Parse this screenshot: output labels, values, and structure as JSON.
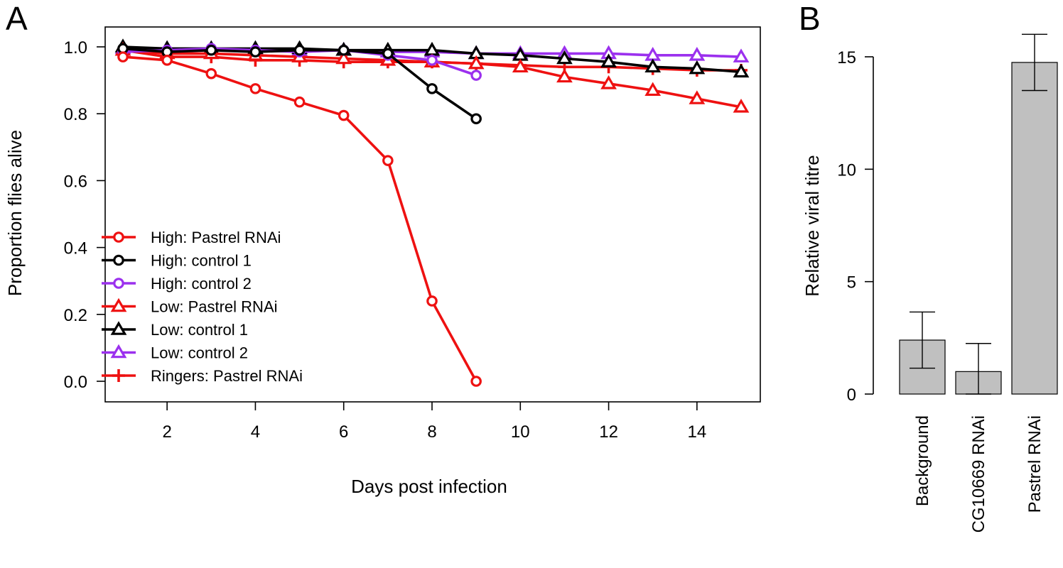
{
  "chart_data": [
    {
      "type": "line",
      "panel_label": "A",
      "xlabel": "Days post infection",
      "ylabel": "Proportion flies alive",
      "xlim": [
        1,
        15
      ],
      "ylim": [
        0,
        1
      ],
      "x_ticks": [
        2,
        4,
        6,
        8,
        10,
        12,
        14
      ],
      "y_ticks": [
        0.0,
        0.2,
        0.4,
        0.6,
        0.8,
        1.0
      ],
      "y_tick_labels": [
        "0.0",
        "0.2",
        "0.4",
        "0.6",
        "0.8",
        "1.0"
      ],
      "grid": false,
      "legend_position": "bottom-left",
      "series": [
        {
          "name": "High: Pastrel RNAi",
          "color": "#ee1111",
          "marker": "circle",
          "x": [
            1,
            2,
            3,
            4,
            5,
            6,
            7,
            8,
            9
          ],
          "y": [
            0.97,
            0.96,
            0.92,
            0.875,
            0.835,
            0.795,
            0.66,
            0.24,
            0.0
          ]
        },
        {
          "name": "High: control 1",
          "color": "#000000",
          "marker": "circle",
          "x": [
            1,
            2,
            3,
            4,
            5,
            6,
            7,
            8,
            9
          ],
          "y": [
            0.995,
            0.985,
            0.99,
            0.985,
            0.99,
            0.99,
            0.98,
            0.875,
            0.785
          ]
        },
        {
          "name": "High: control 2",
          "color": "#9b30ee",
          "marker": "circle",
          "x": [
            1,
            2,
            3,
            4,
            5,
            6,
            7,
            8,
            9
          ],
          "y": [
            0.985,
            0.99,
            0.995,
            0.99,
            0.985,
            0.99,
            0.975,
            0.96,
            0.915
          ]
        },
        {
          "name": "Low: Pastrel RNAi",
          "color": "#ee1111",
          "marker": "triangle",
          "x": [
            1,
            2,
            3,
            4,
            5,
            6,
            7,
            8,
            9,
            10,
            11,
            12,
            13,
            14,
            15
          ],
          "y": [
            0.99,
            0.98,
            0.98,
            0.975,
            0.97,
            0.965,
            0.96,
            0.955,
            0.95,
            0.94,
            0.91,
            0.89,
            0.87,
            0.845,
            0.82
          ]
        },
        {
          "name": "Low: control 1",
          "color": "#000000",
          "marker": "triangle",
          "x": [
            1,
            2,
            3,
            4,
            5,
            6,
            7,
            8,
            9,
            10,
            11,
            12,
            13,
            14,
            15
          ],
          "y": [
            1.0,
            0.995,
            0.995,
            0.995,
            0.995,
            0.99,
            0.99,
            0.99,
            0.98,
            0.975,
            0.965,
            0.955,
            0.94,
            0.935,
            0.925
          ]
        },
        {
          "name": "Low: control 2",
          "color": "#9b30ee",
          "marker": "triangle",
          "x": [
            1,
            2,
            3,
            4,
            5,
            6,
            7,
            8,
            9,
            10,
            11,
            12,
            13,
            14,
            15
          ],
          "y": [
            0.995,
            0.995,
            0.995,
            0.99,
            0.99,
            0.99,
            0.985,
            0.985,
            0.98,
            0.98,
            0.98,
            0.98,
            0.975,
            0.975,
            0.97
          ]
        },
        {
          "name": "Ringers: Pastrel RNAi",
          "color": "#ee1111",
          "marker": "plus",
          "x": [
            1,
            2,
            3,
            4,
            5,
            6,
            7,
            8,
            9,
            10,
            11,
            12,
            13,
            14,
            15
          ],
          "y": [
            0.99,
            0.97,
            0.97,
            0.96,
            0.96,
            0.955,
            0.955,
            0.955,
            0.95,
            0.945,
            0.94,
            0.94,
            0.935,
            0.93,
            0.93
          ]
        }
      ]
    },
    {
      "type": "bar",
      "panel_label": "B",
      "ylabel": "Relative viral titre",
      "ylim": [
        0,
        15
      ],
      "y_ticks": [
        0,
        5,
        10,
        15
      ],
      "y_tick_labels": [
        "0",
        "5",
        "10",
        "15"
      ],
      "categories": [
        "Background",
        "CG10669 RNAi",
        "Pastrel RNAi"
      ],
      "values": [
        2.4,
        1.0,
        14.75
      ],
      "error_low": [
        1.15,
        0.0,
        13.5
      ],
      "error_high": [
        3.65,
        2.25,
        16.0
      ],
      "bar_color": "#c0c0c0"
    }
  ]
}
